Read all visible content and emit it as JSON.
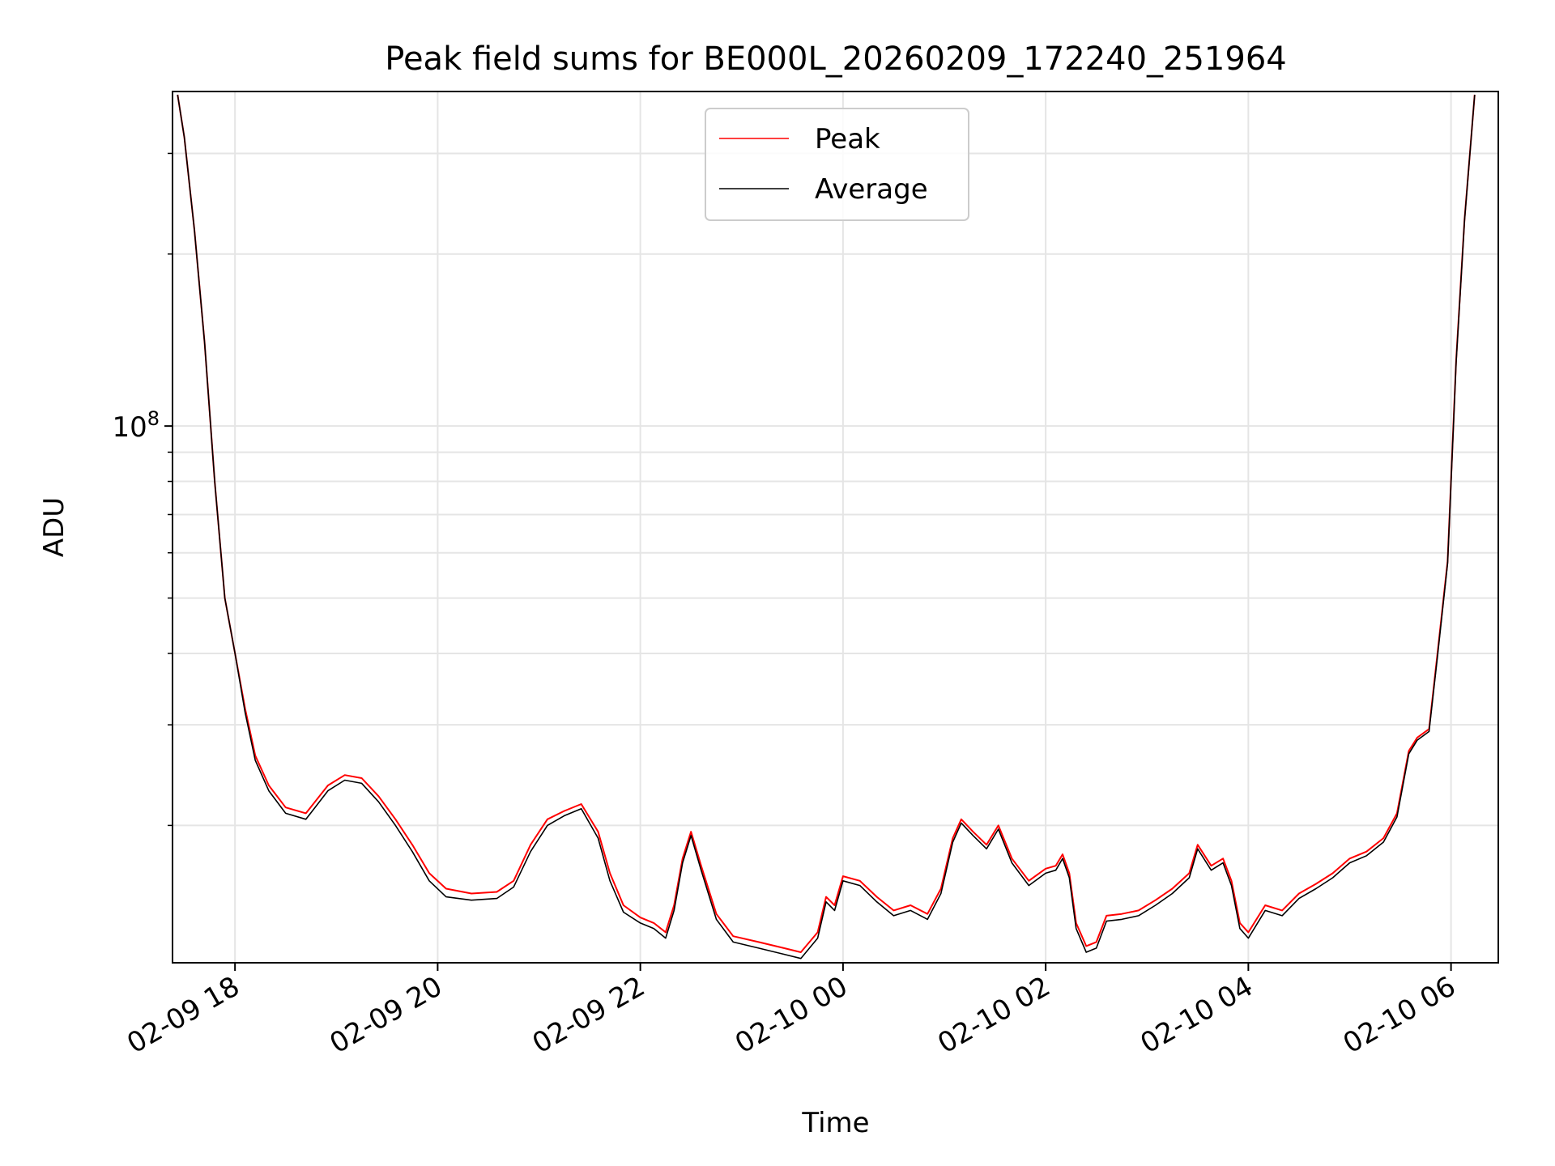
{
  "chart_data": {
    "type": "line",
    "title": "Peak field sums for BE000L_20260209_172240_251964",
    "xlabel": "Time",
    "ylabel": "ADU",
    "y_scale": "log",
    "ylim": [
      11500000,
      385000000
    ],
    "xlim": [
      "2026-02-09 17:23",
      "2026-02-10 06:28"
    ],
    "grid": true,
    "legend_position": "upper center",
    "x_ticks": [
      {
        "t": "2026-02-09 18:00",
        "label": "02-09 18"
      },
      {
        "t": "2026-02-09 20:00",
        "label": "02-09 20"
      },
      {
        "t": "2026-02-09 22:00",
        "label": "02-09 22"
      },
      {
        "t": "2026-02-10 00:00",
        "label": "02-10 00"
      },
      {
        "t": "2026-02-10 02:00",
        "label": "02-10 02"
      },
      {
        "t": "2026-02-10 04:00",
        "label": "02-10 04"
      },
      {
        "t": "2026-02-10 06:00",
        "label": "02-10 06"
      }
    ],
    "y_major_ticks": [
      {
        "value": 100000000,
        "base": "10",
        "exp": "8"
      }
    ],
    "y_minor_ticks": [
      20000000,
      30000000,
      40000000,
      50000000,
      60000000,
      70000000,
      80000000,
      90000000,
      200000000,
      300000000
    ],
    "series": [
      {
        "name": "Peak",
        "color": "#ff0000",
        "points": [
          [
            "2026-02-09 17:26",
            380000000
          ],
          [
            "2026-02-09 17:30",
            320000000
          ],
          [
            "2026-02-09 17:36",
            220000000
          ],
          [
            "2026-02-09 17:42",
            140000000
          ],
          [
            "2026-02-09 17:48",
            80000000
          ],
          [
            "2026-02-09 17:54",
            50000000
          ],
          [
            "2026-02-09 18:00",
            40000000
          ],
          [
            "2026-02-09 18:06",
            32000000
          ],
          [
            "2026-02-09 18:12",
            26500000
          ],
          [
            "2026-02-09 18:20",
            23500000
          ],
          [
            "2026-02-09 18:30",
            21500000
          ],
          [
            "2026-02-09 18:42",
            21000000
          ],
          [
            "2026-02-09 18:55",
            23500000
          ],
          [
            "2026-02-09 19:05",
            24500000
          ],
          [
            "2026-02-09 19:15",
            24200000
          ],
          [
            "2026-02-09 19:25",
            22500000
          ],
          [
            "2026-02-09 19:35",
            20500000
          ],
          [
            "2026-02-09 19:45",
            18500000
          ],
          [
            "2026-02-09 19:55",
            16500000
          ],
          [
            "2026-02-09 20:05",
            15500000
          ],
          [
            "2026-02-09 20:20",
            15200000
          ],
          [
            "2026-02-09 20:35",
            15300000
          ],
          [
            "2026-02-09 20:45",
            16000000
          ],
          [
            "2026-02-09 20:55",
            18500000
          ],
          [
            "2026-02-09 21:05",
            20500000
          ],
          [
            "2026-02-09 21:15",
            21200000
          ],
          [
            "2026-02-09 21:25",
            21800000
          ],
          [
            "2026-02-09 21:35",
            19500000
          ],
          [
            "2026-02-09 21:42",
            16500000
          ],
          [
            "2026-02-09 21:50",
            14500000
          ],
          [
            "2026-02-09 22:00",
            13800000
          ],
          [
            "2026-02-09 22:08",
            13500000
          ],
          [
            "2026-02-09 22:15",
            13000000
          ],
          [
            "2026-02-09 22:20",
            14500000
          ],
          [
            "2026-02-09 22:25",
            17500000
          ],
          [
            "2026-02-09 22:30",
            19500000
          ],
          [
            "2026-02-09 22:36",
            17000000
          ],
          [
            "2026-02-09 22:45",
            14000000
          ],
          [
            "2026-02-09 22:55",
            12800000
          ],
          [
            "2026-02-09 23:10",
            12500000
          ],
          [
            "2026-02-09 23:25",
            12200000
          ],
          [
            "2026-02-09 23:35",
            12000000
          ],
          [
            "2026-02-09 23:45",
            13000000
          ],
          [
            "2026-02-09 23:50",
            15000000
          ],
          [
            "2026-02-09 23:55",
            14500000
          ],
          [
            "2026-02-10 00:00",
            16300000
          ],
          [
            "2026-02-10 00:10",
            16000000
          ],
          [
            "2026-02-10 00:20",
            15000000
          ],
          [
            "2026-02-10 00:30",
            14200000
          ],
          [
            "2026-02-10 00:40",
            14500000
          ],
          [
            "2026-02-10 00:50",
            14000000
          ],
          [
            "2026-02-10 00:58",
            15500000
          ],
          [
            "2026-02-10 01:05",
            19000000
          ],
          [
            "2026-02-10 01:10",
            20500000
          ],
          [
            "2026-02-10 01:17",
            19500000
          ],
          [
            "2026-02-10 01:25",
            18500000
          ],
          [
            "2026-02-10 01:32",
            20000000
          ],
          [
            "2026-02-10 01:40",
            17500000
          ],
          [
            "2026-02-10 01:50",
            16000000
          ],
          [
            "2026-02-10 02:00",
            16800000
          ],
          [
            "2026-02-10 02:06",
            17000000
          ],
          [
            "2026-02-10 02:10",
            17800000
          ],
          [
            "2026-02-10 02:14",
            16500000
          ],
          [
            "2026-02-10 02:18",
            13500000
          ],
          [
            "2026-02-10 02:24",
            12300000
          ],
          [
            "2026-02-10 02:30",
            12500000
          ],
          [
            "2026-02-10 02:36",
            13900000
          ],
          [
            "2026-02-10 02:45",
            14000000
          ],
          [
            "2026-02-10 02:55",
            14200000
          ],
          [
            "2026-02-10 03:05",
            14800000
          ],
          [
            "2026-02-10 03:15",
            15500000
          ],
          [
            "2026-02-10 03:25",
            16500000
          ],
          [
            "2026-02-10 03:30",
            18500000
          ],
          [
            "2026-02-10 03:38",
            17000000
          ],
          [
            "2026-02-10 03:45",
            17500000
          ],
          [
            "2026-02-10 03:50",
            16000000
          ],
          [
            "2026-02-10 03:55",
            13500000
          ],
          [
            "2026-02-10 04:00",
            13000000
          ],
          [
            "2026-02-10 04:10",
            14500000
          ],
          [
            "2026-02-10 04:20",
            14200000
          ],
          [
            "2026-02-10 04:30",
            15200000
          ],
          [
            "2026-02-10 04:40",
            15800000
          ],
          [
            "2026-02-10 04:50",
            16500000
          ],
          [
            "2026-02-10 05:00",
            17500000
          ],
          [
            "2026-02-10 05:10",
            18000000
          ],
          [
            "2026-02-10 05:20",
            19000000
          ],
          [
            "2026-02-10 05:28",
            21000000
          ],
          [
            "2026-02-10 05:35",
            27000000
          ],
          [
            "2026-02-10 05:40",
            28500000
          ],
          [
            "2026-02-10 05:47",
            29500000
          ],
          [
            "2026-02-10 05:52",
            40000000
          ],
          [
            "2026-02-10 05:58",
            58000000
          ],
          [
            "2026-02-10 06:03",
            130000000
          ],
          [
            "2026-02-10 06:08",
            230000000
          ],
          [
            "2026-02-10 06:14",
            380000000
          ]
        ]
      },
      {
        "name": "Average",
        "color": "#000000",
        "points": [
          [
            "2026-02-09 17:26",
            380000000
          ],
          [
            "2026-02-09 17:30",
            320000000
          ],
          [
            "2026-02-09 17:36",
            220000000
          ],
          [
            "2026-02-09 17:42",
            140000000
          ],
          [
            "2026-02-09 17:48",
            80000000
          ],
          [
            "2026-02-09 17:54",
            50000000
          ],
          [
            "2026-02-09 18:00",
            40000000
          ],
          [
            "2026-02-09 18:06",
            31500000
          ],
          [
            "2026-02-09 18:12",
            26000000
          ],
          [
            "2026-02-09 18:20",
            23000000
          ],
          [
            "2026-02-09 18:30",
            21000000
          ],
          [
            "2026-02-09 18:42",
            20500000
          ],
          [
            "2026-02-09 18:55",
            23000000
          ],
          [
            "2026-02-09 19:05",
            24000000
          ],
          [
            "2026-02-09 19:15",
            23700000
          ],
          [
            "2026-02-09 19:25",
            22000000
          ],
          [
            "2026-02-09 19:35",
            20000000
          ],
          [
            "2026-02-09 19:45",
            18000000
          ],
          [
            "2026-02-09 19:55",
            16000000
          ],
          [
            "2026-02-09 20:05",
            15000000
          ],
          [
            "2026-02-09 20:20",
            14800000
          ],
          [
            "2026-02-09 20:35",
            14900000
          ],
          [
            "2026-02-09 20:45",
            15600000
          ],
          [
            "2026-02-09 20:55",
            18000000
          ],
          [
            "2026-02-09 21:05",
            20000000
          ],
          [
            "2026-02-09 21:15",
            20800000
          ],
          [
            "2026-02-09 21:25",
            21400000
          ],
          [
            "2026-02-09 21:35",
            19000000
          ],
          [
            "2026-02-09 21:42",
            16000000
          ],
          [
            "2026-02-09 21:50",
            14100000
          ],
          [
            "2026-02-09 22:00",
            13500000
          ],
          [
            "2026-02-09 22:08",
            13200000
          ],
          [
            "2026-02-09 22:15",
            12700000
          ],
          [
            "2026-02-09 22:20",
            14200000
          ],
          [
            "2026-02-09 22:25",
            17200000
          ],
          [
            "2026-02-09 22:30",
            19200000
          ],
          [
            "2026-02-09 22:36",
            16700000
          ],
          [
            "2026-02-09 22:45",
            13700000
          ],
          [
            "2026-02-09 22:55",
            12500000
          ],
          [
            "2026-02-09 23:10",
            12200000
          ],
          [
            "2026-02-09 23:25",
            11900000
          ],
          [
            "2026-02-09 23:35",
            11700000
          ],
          [
            "2026-02-09 23:45",
            12700000
          ],
          [
            "2026-02-09 23:50",
            14700000
          ],
          [
            "2026-02-09 23:55",
            14200000
          ],
          [
            "2026-02-10 00:00",
            16000000
          ],
          [
            "2026-02-10 00:10",
            15700000
          ],
          [
            "2026-02-10 00:20",
            14700000
          ],
          [
            "2026-02-10 00:30",
            13900000
          ],
          [
            "2026-02-10 00:40",
            14200000
          ],
          [
            "2026-02-10 00:50",
            13700000
          ],
          [
            "2026-02-10 00:58",
            15200000
          ],
          [
            "2026-02-10 01:05",
            18700000
          ],
          [
            "2026-02-10 01:10",
            20200000
          ],
          [
            "2026-02-10 01:17",
            19200000
          ],
          [
            "2026-02-10 01:25",
            18200000
          ],
          [
            "2026-02-10 01:32",
            19700000
          ],
          [
            "2026-02-10 01:40",
            17200000
          ],
          [
            "2026-02-10 01:50",
            15700000
          ],
          [
            "2026-02-10 02:00",
            16500000
          ],
          [
            "2026-02-10 02:06",
            16700000
          ],
          [
            "2026-02-10 02:10",
            17500000
          ],
          [
            "2026-02-10 02:14",
            16200000
          ],
          [
            "2026-02-10 02:18",
            13200000
          ],
          [
            "2026-02-10 02:24",
            12000000
          ],
          [
            "2026-02-10 02:30",
            12200000
          ],
          [
            "2026-02-10 02:36",
            13600000
          ],
          [
            "2026-02-10 02:45",
            13700000
          ],
          [
            "2026-02-10 02:55",
            13900000
          ],
          [
            "2026-02-10 03:05",
            14500000
          ],
          [
            "2026-02-10 03:15",
            15200000
          ],
          [
            "2026-02-10 03:25",
            16200000
          ],
          [
            "2026-02-10 03:30",
            18200000
          ],
          [
            "2026-02-10 03:38",
            16700000
          ],
          [
            "2026-02-10 03:45",
            17200000
          ],
          [
            "2026-02-10 03:50",
            15700000
          ],
          [
            "2026-02-10 03:55",
            13200000
          ],
          [
            "2026-02-10 04:00",
            12700000
          ],
          [
            "2026-02-10 04:10",
            14200000
          ],
          [
            "2026-02-10 04:20",
            13900000
          ],
          [
            "2026-02-10 04:30",
            14900000
          ],
          [
            "2026-02-10 04:40",
            15500000
          ],
          [
            "2026-02-10 04:50",
            16200000
          ],
          [
            "2026-02-10 05:00",
            17200000
          ],
          [
            "2026-02-10 05:10",
            17700000
          ],
          [
            "2026-02-10 05:20",
            18700000
          ],
          [
            "2026-02-10 05:28",
            20700000
          ],
          [
            "2026-02-10 05:35",
            26700000
          ],
          [
            "2026-02-10 05:40",
            28200000
          ],
          [
            "2026-02-10 05:47",
            29200000
          ],
          [
            "2026-02-10 05:52",
            39500000
          ],
          [
            "2026-02-10 05:58",
            57500000
          ],
          [
            "2026-02-10 06:03",
            129000000
          ],
          [
            "2026-02-10 06:08",
            229000000
          ],
          [
            "2026-02-10 06:14",
            380000000
          ]
        ]
      }
    ]
  }
}
